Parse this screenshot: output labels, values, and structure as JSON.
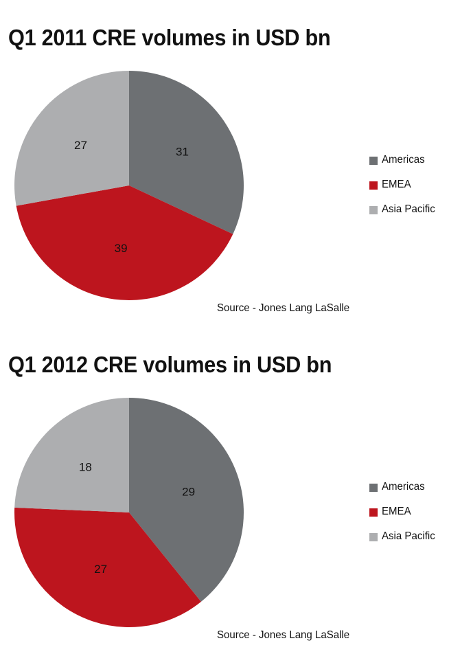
{
  "colors": {
    "americas": "#6d7073",
    "emea": "#bd151e",
    "asia_pacific": "#adaeb0"
  },
  "chart_data": [
    {
      "type": "pie",
      "title": "Q1 2011 CRE volumes in USD bn",
      "categories": [
        "Americas",
        "EMEA",
        "Asia Pacific"
      ],
      "values": [
        31,
        39,
        27
      ],
      "legend": "right",
      "source": "Source - Jones Lang LaSalle"
    },
    {
      "type": "pie",
      "title": "Q1 2012 CRE volumes in USD bn",
      "categories": [
        "Americas",
        "EMEA",
        "Asia Pacific"
      ],
      "values": [
        29,
        27,
        18
      ],
      "legend": "right",
      "source": "Source - Jones Lang LaSalle"
    }
  ]
}
